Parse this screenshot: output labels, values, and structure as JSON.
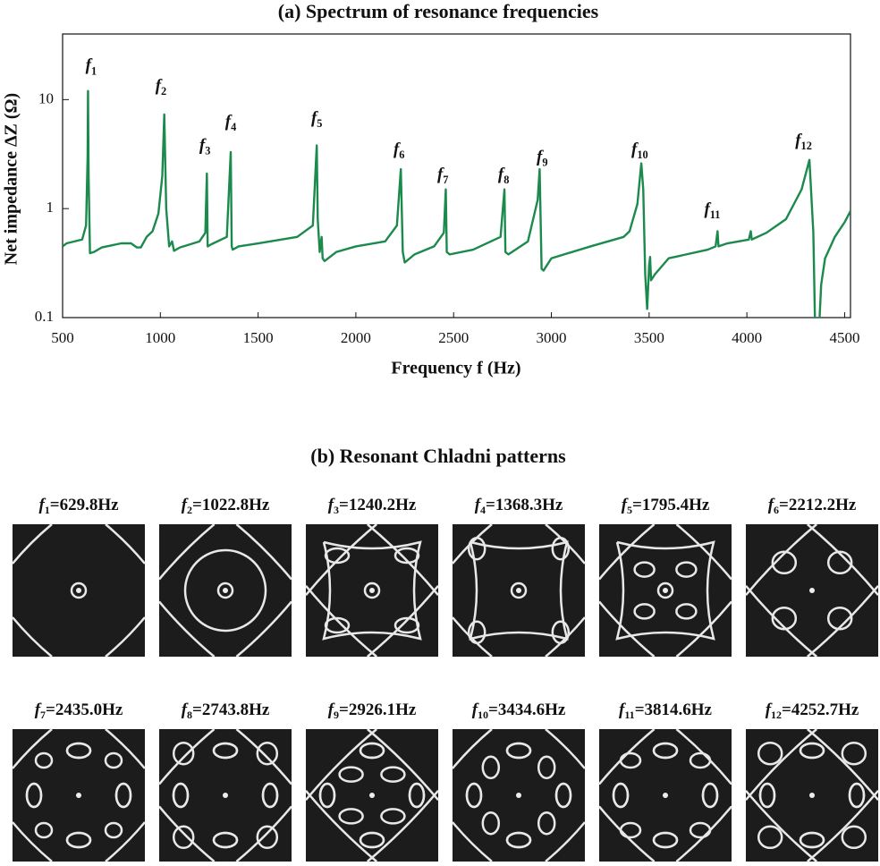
{
  "chart_data": {
    "type": "line",
    "title": "(a) Spectrum of resonance frequencies",
    "xlabel": "Frequency f (Hz)",
    "ylabel": "Net impedance ΔZ (Ω)",
    "xlim": [
      500,
      4530
    ],
    "ylim": [
      0.1,
      40
    ],
    "ylog": true,
    "xticks": [
      500,
      1000,
      1500,
      2000,
      2500,
      3000,
      3500,
      4000,
      4500
    ],
    "yticks": [
      0.1,
      1,
      10
    ],
    "x": [
      500,
      520,
      600,
      620,
      628,
      630,
      633,
      640,
      660,
      700,
      800,
      850,
      880,
      900,
      930,
      960,
      990,
      1010,
      1020,
      1030,
      1045,
      1060,
      1070,
      1100,
      1200,
      1230,
      1238,
      1242,
      1260,
      1340,
      1360,
      1365,
      1370,
      1400,
      1500,
      1700,
      1780,
      1800,
      1805,
      1815,
      1825,
      1830,
      1840,
      1900,
      2000,
      2150,
      2210,
      2230,
      2240,
      2250,
      2300,
      2400,
      2450,
      2460,
      2465,
      2480,
      2600,
      2740,
      2760,
      2765,
      2780,
      2880,
      2930,
      2940,
      2950,
      2960,
      3000,
      3200,
      3370,
      3400,
      3440,
      3460,
      3470,
      3480,
      3490,
      3500,
      3505,
      3510,
      3530,
      3600,
      3800,
      3840,
      3850,
      3855,
      3900,
      4010,
      4020,
      4025,
      4100,
      4200,
      4280,
      4320,
      4340,
      4348,
      4360,
      4372,
      4380,
      4400,
      4450,
      4500,
      4530
    ],
    "series": [
      {
        "name": "ΔZ",
        "color": "#1b8a4c",
        "values": [
          0.45,
          0.48,
          0.52,
          0.7,
          3,
          12,
          2,
          0.39,
          0.4,
          0.44,
          0.48,
          0.48,
          0.44,
          0.44,
          0.55,
          0.62,
          0.9,
          2,
          7.3,
          1,
          0.45,
          0.5,
          0.41,
          0.44,
          0.5,
          0.6,
          2.1,
          0.45,
          0.47,
          0.55,
          3.3,
          0.45,
          0.42,
          0.45,
          0.48,
          0.55,
          0.7,
          3.8,
          0.8,
          0.4,
          0.55,
          0.35,
          0.33,
          0.4,
          0.45,
          0.5,
          0.7,
          2.3,
          0.4,
          0.32,
          0.38,
          0.45,
          0.6,
          1.5,
          0.4,
          0.38,
          0.42,
          0.55,
          1.5,
          0.4,
          0.38,
          0.5,
          1.2,
          2.3,
          0.28,
          0.27,
          0.35,
          0.45,
          0.55,
          0.62,
          1.1,
          2.6,
          1.5,
          0.25,
          0.12,
          0.3,
          0.36,
          0.22,
          0.25,
          0.35,
          0.42,
          0.45,
          0.62,
          0.45,
          0.48,
          0.52,
          0.62,
          0.52,
          0.6,
          0.8,
          1.5,
          2.8,
          0.6,
          0.1,
          null,
          0.1,
          0.2,
          0.35,
          0.55,
          0.75,
          0.95
        ]
      }
    ],
    "annotations": [
      {
        "symbol": "f",
        "subscript": "1",
        "x": 646,
        "y": 20
      },
      {
        "symbol": "f",
        "subscript": "2",
        "x": 1003,
        "y": 13
      },
      {
        "symbol": "f",
        "subscript": "3",
        "x": 1228,
        "y": 3.7
      },
      {
        "symbol": "f",
        "subscript": "4",
        "x": 1360,
        "y": 6.1
      },
      {
        "symbol": "f",
        "subscript": "5",
        "x": 1800,
        "y": 6.6
      },
      {
        "symbol": "f",
        "subscript": "6",
        "x": 2221,
        "y": 3.4
      },
      {
        "symbol": "f",
        "subscript": "7",
        "x": 2445,
        "y": 2.0
      },
      {
        "symbol": "f",
        "subscript": "8",
        "x": 2756,
        "y": 2.0
      },
      {
        "symbol": "f",
        "subscript": "9",
        "x": 2953,
        "y": 2.9
      },
      {
        "symbol": "f",
        "subscript": "10",
        "x": 3452,
        "y": 3.4
      },
      {
        "symbol": "f",
        "subscript": "11",
        "x": 3823,
        "y": 0.96
      },
      {
        "symbol": "f",
        "subscript": "12",
        "x": 4290,
        "y": 4.1
      }
    ]
  },
  "panel_b": {
    "title": "(b) Resonant Chladni patterns",
    "patterns": [
      {
        "symbol": "f",
        "subscript": "1",
        "text": "=629.8Hz"
      },
      {
        "symbol": "f",
        "subscript": "2",
        "text": "=1022.8Hz"
      },
      {
        "symbol": "f",
        "subscript": "3",
        "text": "=1240.2Hz"
      },
      {
        "symbol": "f",
        "subscript": "4",
        "text": "=1368.3Hz"
      },
      {
        "symbol": "f",
        "subscript": "5",
        "text": "=1795.4Hz"
      },
      {
        "symbol": "f",
        "subscript": "6",
        "text": "=2212.2Hz"
      },
      {
        "symbol": "f",
        "subscript": "7",
        "text": "=2435.0Hz"
      },
      {
        "symbol": "f",
        "subscript": "8",
        "text": "=2743.8Hz"
      },
      {
        "symbol": "f",
        "subscript": "9",
        "text": "=2926.1Hz"
      },
      {
        "symbol": "f",
        "subscript": "10",
        "text": "=3434.6Hz"
      },
      {
        "symbol": "f",
        "subscript": "11",
        "text": "=3814.6Hz"
      },
      {
        "symbol": "f",
        "subscript": "12",
        "text": "=4252.7Hz"
      }
    ]
  }
}
